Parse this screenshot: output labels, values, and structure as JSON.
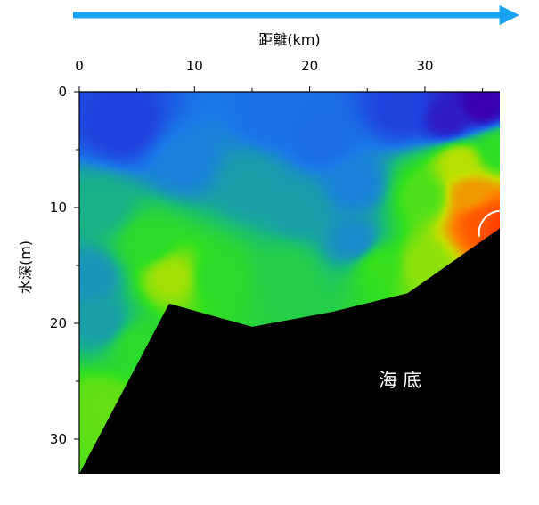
{
  "chart_data": {
    "type": "heatmap",
    "title": "",
    "xlabel": "距離(km)",
    "ylabel": "水深(m)",
    "x_ticks": [
      0,
      10,
      20,
      30
    ],
    "y_ticks": [
      0,
      10,
      20,
      30
    ],
    "xlim": [
      0,
      36.5
    ],
    "ylim": [
      0,
      33
    ],
    "y_inverted": true,
    "x_axis_position": "top",
    "direction_arrow": "right",
    "colormap": [
      "#3a00b0",
      "#2040e0",
      "#1a7ae8",
      "#18c070",
      "#30e020",
      "#c8e000",
      "#ff8000",
      "#ff4000"
    ],
    "seafloor_profile": [
      {
        "x": 0,
        "y": 33
      },
      {
        "x": 7.8,
        "y": 18.3
      },
      {
        "x": 15,
        "y": 20.3
      },
      {
        "x": 22,
        "y": 19
      },
      {
        "x": 28.5,
        "y": 17.4
      },
      {
        "x": 36.5,
        "y": 11.8
      }
    ],
    "field_hotspots": [
      {
        "x": 35,
        "y": 1.2,
        "level": 0.0
      },
      {
        "x": 32,
        "y": 2.5,
        "level": 0.06
      },
      {
        "x": 28,
        "y": 1.5,
        "level": 0.15
      },
      {
        "x": 4,
        "y": 3,
        "level": 0.14
      },
      {
        "x": 17,
        "y": 2,
        "level": 0.26
      },
      {
        "x": 21,
        "y": 4,
        "level": 0.25
      },
      {
        "x": 9,
        "y": 6,
        "level": 0.3
      },
      {
        "x": 15,
        "y": 8,
        "level": 0.36
      },
      {
        "x": 24,
        "y": 8,
        "level": 0.3
      },
      {
        "x": 24,
        "y": 13,
        "level": 0.32
      },
      {
        "x": 2,
        "y": 10,
        "level": 0.4
      },
      {
        "x": 19,
        "y": 10,
        "level": 0.36
      },
      {
        "x": 1,
        "y": 16,
        "level": 0.34
      },
      {
        "x": 2,
        "y": 20,
        "level": 0.36
      },
      {
        "x": 6,
        "y": 13,
        "level": 0.55
      },
      {
        "x": 8,
        "y": 16,
        "level": 0.68
      },
      {
        "x": 12,
        "y": 16,
        "level": 0.55
      },
      {
        "x": 18,
        "y": 16,
        "level": 0.5
      },
      {
        "x": 26,
        "y": 15,
        "level": 0.58
      },
      {
        "x": 5,
        "y": 22,
        "level": 0.55
      },
      {
        "x": 2,
        "y": 27,
        "level": 0.62
      },
      {
        "x": 30,
        "y": 9,
        "level": 0.6
      },
      {
        "x": 30,
        "y": 15,
        "level": 0.66
      },
      {
        "x": 33,
        "y": 6,
        "level": 0.7
      },
      {
        "x": 34,
        "y": 9,
        "level": 0.82
      },
      {
        "x": 35,
        "y": 11,
        "level": 0.95
      },
      {
        "x": 36.4,
        "y": 11.5,
        "level": 1.0
      },
      {
        "x": 36.4,
        "y": 5,
        "level": 0.56
      }
    ],
    "contour_level": 0.96,
    "annotation": "海底"
  }
}
